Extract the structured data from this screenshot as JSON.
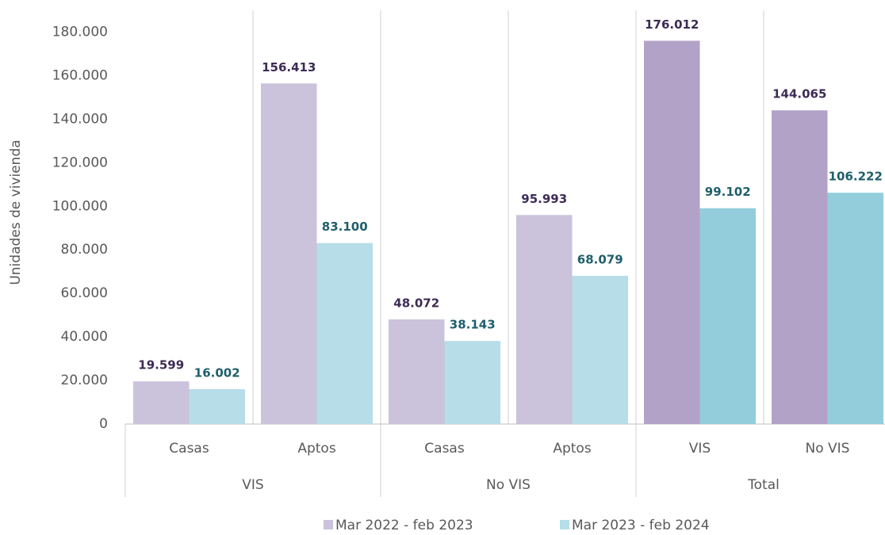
{
  "chart_data": {
    "type": "bar",
    "y_label": "Unidades de vivienda",
    "categories": [
      "Casas",
      "Aptos",
      "Casas",
      "Aptos",
      "VIS",
      "No VIS"
    ],
    "category_groups": [
      "VIS",
      "VIS",
      "No VIS",
      "No VIS",
      "Total",
      "Total"
    ],
    "series": [
      {
        "name": "Mar 2022 - feb 2023",
        "color": "#cbc3dc",
        "colors": [
          "#cbc3dc",
          "#cbc3dc",
          "#cbc3dc",
          "#cbc3dc",
          "#b3a2c8",
          "#b3a2c8"
        ],
        "label_color": "#3d2b55",
        "values": [
          19599,
          156413,
          48072,
          95993,
          176012,
          144065
        ],
        "value_labels": [
          "19.599",
          "156.413",
          "48.072",
          "95.993",
          "176.012",
          "144.065"
        ]
      },
      {
        "name": "Mar 2023 - feb 2024",
        "color": "#b6dde8",
        "colors": [
          "#b6dde8",
          "#b6dde8",
          "#b6dde8",
          "#b6dde8",
          "#93cddc",
          "#93cddc"
        ],
        "label_color": "#1f5f6b",
        "values": [
          16002,
          83100,
          38143,
          68079,
          99102,
          106222
        ],
        "value_labels": [
          "16.002",
          "83.100",
          "38.143",
          "68.079",
          "99.102",
          "106.222"
        ]
      }
    ],
    "ylim": [
      0,
      190000
    ],
    "yticks": [
      0,
      {
        "value": 20000,
        "label": "20.000"
      },
      {
        "value": 40000,
        "label": "40.000"
      },
      {
        "value": 60000,
        "label": "60.000"
      },
      {
        "value": 80000,
        "label": "80.000"
      },
      {
        "value": 100000,
        "label": "100.000"
      },
      {
        "value": 120000,
        "label": "120.000"
      },
      {
        "value": 140000,
        "label": "140.000"
      },
      {
        "value": 160000,
        "label": "160.000"
      },
      {
        "value": 180000,
        "label": "180.000"
      }
    ],
    "legend": "bottom"
  }
}
